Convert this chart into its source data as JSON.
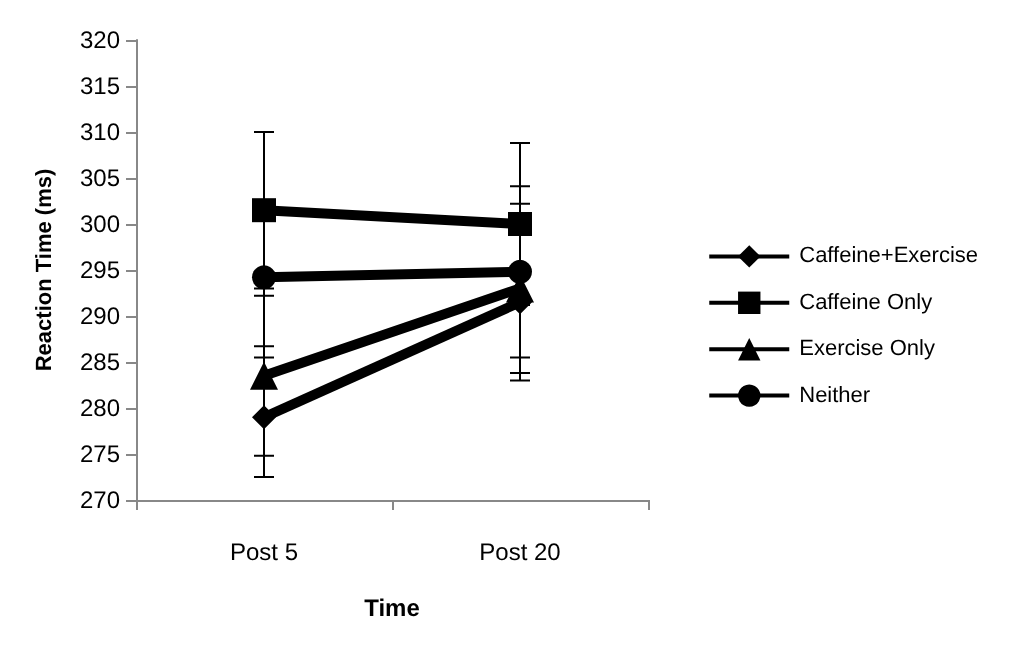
{
  "chart_data": {
    "type": "line",
    "xlabel": "Time",
    "ylabel": "Reaction Time (ms)",
    "categories": [
      "Post 5",
      "Post 20"
    ],
    "ylim": [
      270,
      320
    ],
    "yticks": [
      270,
      275,
      280,
      285,
      290,
      295,
      300,
      305,
      310,
      315,
      320
    ],
    "grid": false,
    "legend": "right",
    "series": [
      {
        "name": "Caffeine+Exercise",
        "color": "#000000",
        "marker": "diamond",
        "values": [
          279,
          291.5
        ],
        "errors": [
          6.5,
          8.5
        ]
      },
      {
        "name": "Caffeine Only",
        "color": "#000000",
        "marker": "square",
        "values": [
          301.5,
          300
        ],
        "errors": [
          8.5,
          8.8
        ]
      },
      {
        "name": "Exercise Only",
        "color": "#000000",
        "marker": "triangle",
        "values": [
          283.5,
          293
        ],
        "errors": [
          8.7,
          9.2
        ]
      },
      {
        "name": "Neither",
        "color": "#000000",
        "marker": "circle",
        "values": [
          294.2,
          294.8
        ],
        "errors": [
          7.5,
          9.3
        ]
      }
    ]
  }
}
